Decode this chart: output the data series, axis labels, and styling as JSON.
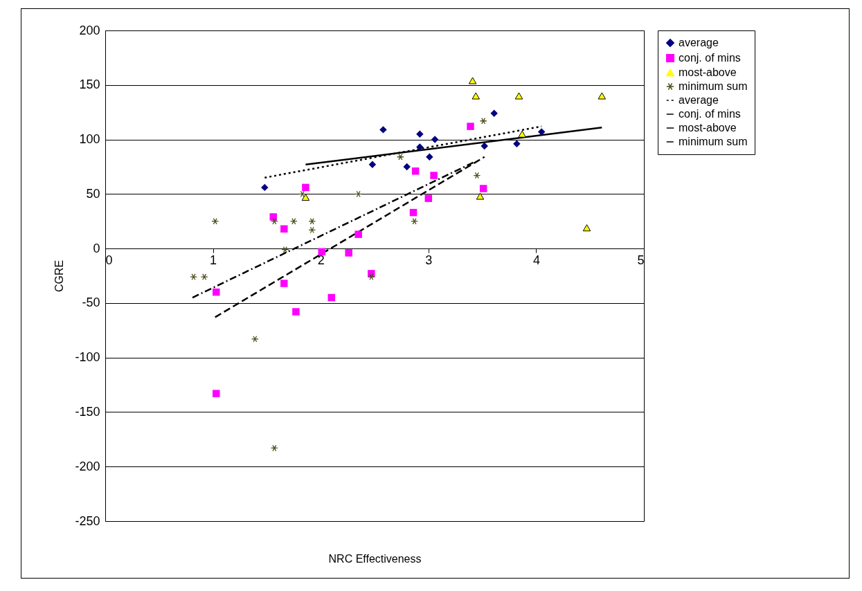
{
  "chart_data": {
    "type": "scatter",
    "xlabel": "NRC Effectiveness",
    "ylabel": "CGRE",
    "xlim": [
      0,
      5
    ],
    "xticks": [
      0,
      1,
      2,
      3,
      4,
      5
    ],
    "ylim": [
      -250,
      200
    ],
    "yticks": [
      -250,
      -200,
      -150,
      -100,
      -50,
      0,
      50,
      100,
      150,
      200
    ],
    "grid": "y",
    "legend": "right",
    "series": [
      {
        "name": "average",
        "marker": "diamond",
        "color": "#000080",
        "x": [
          1.48,
          2.48,
          2.58,
          2.8,
          2.92,
          2.92,
          3.01,
          3.06,
          3.52,
          3.61,
          3.82,
          4.05
        ],
        "values": [
          56,
          77,
          109,
          75,
          93,
          105,
          84,
          100,
          94,
          124,
          96,
          107
        ]
      },
      {
        "name": "conj. of mins",
        "marker": "square",
        "color": "#ff00ff",
        "x": [
          1.03,
          1.03,
          1.56,
          1.66,
          1.66,
          1.77,
          1.86,
          2.01,
          2.1,
          2.26,
          2.35,
          2.47,
          2.86,
          2.88,
          3.0,
          3.05,
          3.39,
          3.51
        ],
        "values": [
          -40,
          -133,
          29,
          18,
          -32,
          -58,
          56,
          -3,
          -45,
          -4,
          13,
          -23,
          33,
          71,
          46,
          67,
          112,
          55
        ]
      },
      {
        "name": "most-above",
        "marker": "triangle",
        "color": "#ffff00",
        "x": [
          1.86,
          3.41,
          3.44,
          3.48,
          3.84,
          3.87,
          4.47,
          4.61
        ],
        "values": [
          47,
          154,
          140,
          48,
          140,
          105,
          19,
          140
        ]
      },
      {
        "name": "minimum sum",
        "marker": "cross",
        "color": "#4d4d1a",
        "x": [
          0.82,
          0.92,
          1.02,
          1.39,
          1.57,
          1.57,
          1.67,
          1.75,
          1.83,
          1.92,
          1.92,
          2.35,
          2.47,
          2.74,
          2.87,
          3.45,
          3.51
        ],
        "values": [
          -26,
          -26,
          25,
          -83,
          25,
          -183,
          -1,
          25,
          50,
          25,
          17,
          50,
          -26,
          84,
          25,
          67,
          117
        ]
      },
      {
        "name": "average",
        "type": "line",
        "line_style": "dotted",
        "color": "#000000",
        "x": [
          1.48,
          4.05
        ],
        "values": [
          65,
          112
        ]
      },
      {
        "name": "conj. of mins",
        "type": "line",
        "line_style": "dashed",
        "color": "#000000",
        "x": [
          1.02,
          3.52
        ],
        "values": [
          -63,
          84
        ]
      },
      {
        "name": "most-above",
        "type": "line",
        "line_style": "solid",
        "color": "#000000",
        "x": [
          1.86,
          4.61
        ],
        "values": [
          77,
          111
        ]
      },
      {
        "name": "minimum sum",
        "type": "line",
        "line_style": "dashdot",
        "color": "#000000",
        "x": [
          0.81,
          3.44
        ],
        "values": [
          -45,
          80
        ]
      }
    ]
  }
}
